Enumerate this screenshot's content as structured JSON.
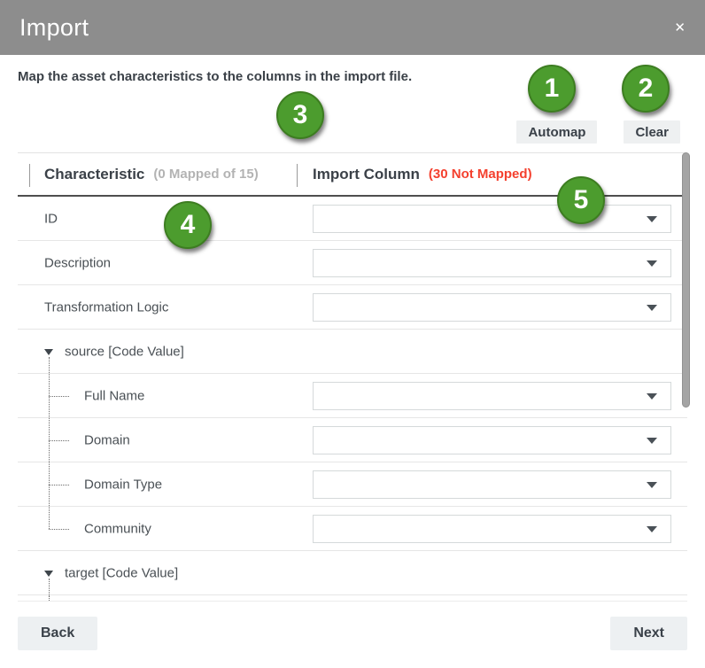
{
  "modal": {
    "title": "Import",
    "close_glyph": "✕"
  },
  "instruction": "Map the asset characteristics to the columns in the import file.",
  "toolbar": {
    "automap_label": "Automap",
    "clear_label": "Clear"
  },
  "table": {
    "characteristic_header": "Characteristic",
    "characteristic_status": "(0 Mapped of 15)",
    "import_header": "Import Column",
    "import_status": "(30 Not Mapped)",
    "rows": [
      {
        "label": "ID",
        "type": "leaf",
        "dropdown": true,
        "last": false
      },
      {
        "label": "Description",
        "type": "leaf",
        "dropdown": true,
        "last": false
      },
      {
        "label": "Transformation Logic",
        "type": "leaf",
        "dropdown": true,
        "last": false
      },
      {
        "label": "source [Code Value]",
        "type": "group",
        "dropdown": false,
        "last": false
      },
      {
        "label": "Full Name",
        "type": "child",
        "dropdown": true,
        "last": false
      },
      {
        "label": "Domain",
        "type": "child",
        "dropdown": true,
        "last": false
      },
      {
        "label": "Domain Type",
        "type": "child",
        "dropdown": true,
        "last": false
      },
      {
        "label": "Community",
        "type": "child",
        "dropdown": true,
        "last": true
      },
      {
        "label": "target [Code Value]",
        "type": "group",
        "dropdown": false,
        "last": false
      }
    ],
    "dropdown_selected_value": ""
  },
  "footer": {
    "back_label": "Back",
    "next_label": "Next"
  },
  "callouts": [
    "1",
    "2",
    "3",
    "4",
    "5"
  ],
  "colors": {
    "header_gray": "#8d8d8d",
    "accent_green": "#4c9c2e",
    "error_red": "#f4402e"
  }
}
